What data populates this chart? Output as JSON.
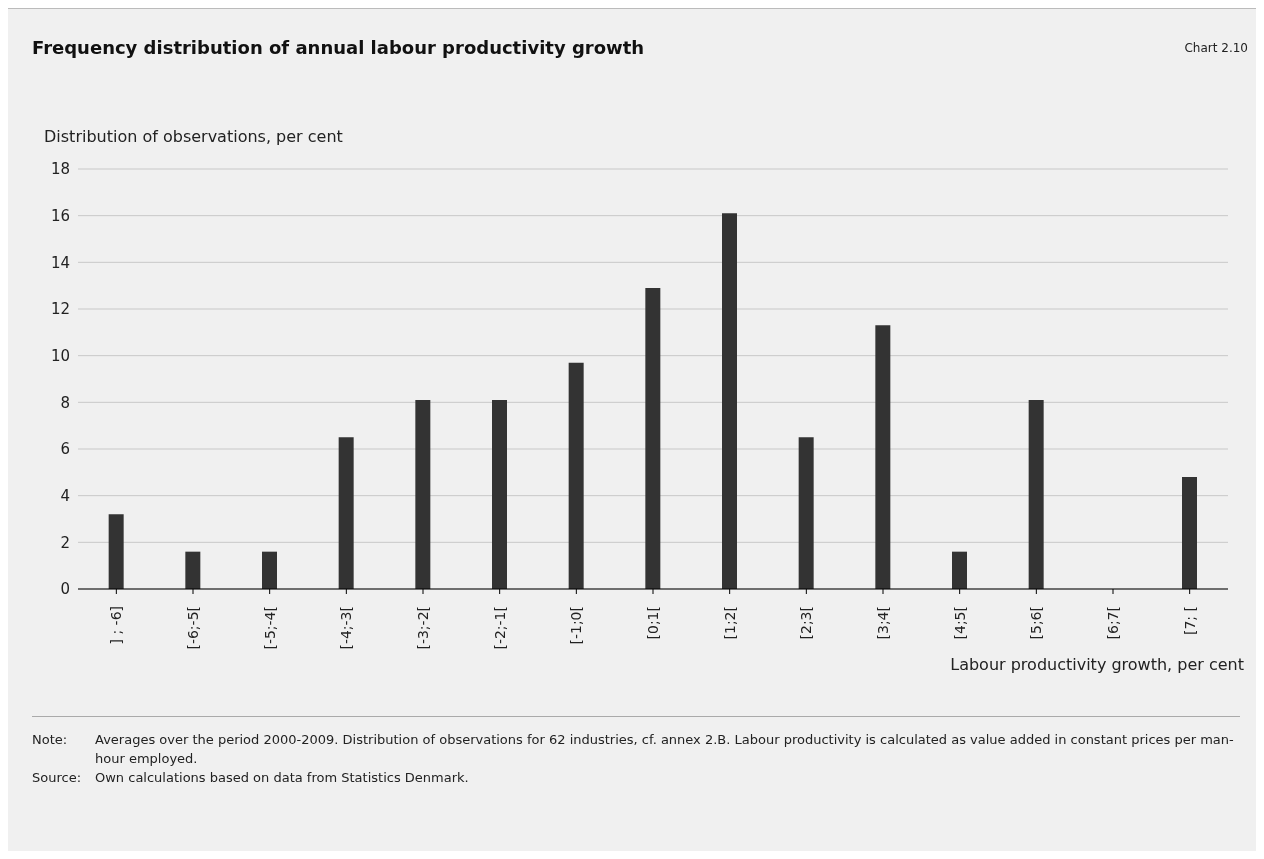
{
  "chart_data": {
    "type": "bar",
    "title": "Frequency distribution of annual labour productivity growth",
    "ylabel": "Distribution of observations, per cent",
    "xlabel": "Labour productivity growth, per cent",
    "categories": [
      "] ; -6]",
      "[-6;-5[",
      "[-5;-4[",
      "[-4;-3[",
      "[-3;-2[",
      "[-2;-1[",
      "[-1;0[",
      "[0;1[",
      "[1;2[",
      "[2;3[",
      "[3;4[",
      "[4;5[",
      "[5;6[",
      "[6;7[",
      "[7; ["
    ],
    "values": [
      3.2,
      1.6,
      1.6,
      6.5,
      8.1,
      8.1,
      9.7,
      12.9,
      16.1,
      6.5,
      11.3,
      1.6,
      8.1,
      0,
      4.8
    ],
    "color": "#333333",
    "ylim": [
      0,
      18
    ],
    "yticks": [
      0,
      2,
      4,
      6,
      8,
      10,
      12,
      14,
      16,
      18
    ],
    "grid": "y",
    "annotations": [
      "Chart 2.10",
      "Note:",
      "Averages over the period 2000-2009. Distribution of observations for 62 industries, cf. annex 2.B. Labour productivity is calculated as value added in constant prices per man-hour employed.",
      "Source:",
      "Own calculations based on data from Statistics Denmark."
    ]
  }
}
